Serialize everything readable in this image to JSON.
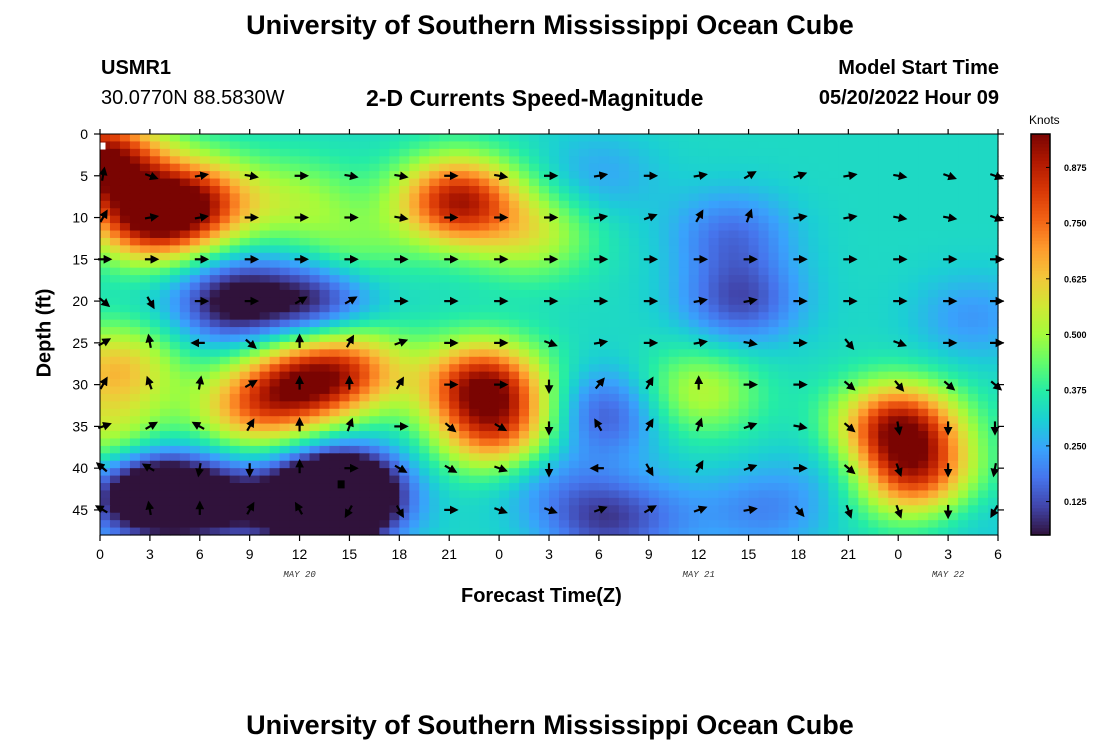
{
  "page": {
    "title_top": "University of Southern Mississippi Ocean Cube",
    "title_bottom": "University of Southern Mississippi Ocean Cube"
  },
  "header": {
    "station": "USMR1",
    "location": "30.0770N  88.5830W",
    "plot_title": "2-D Currents Speed-Magnitude",
    "model_label": "Model Start Time",
    "model_time": "05/20/2022 Hour 09"
  },
  "chart_data": {
    "type": "heatmap",
    "title": "2-D Currents Speed-Magnitude",
    "xlabel": "Forecast Time(Z)",
    "ylabel": "Depth (ft)",
    "x_tick_labels": [
      "0",
      "3",
      "6",
      "9",
      "12",
      "15",
      "18",
      "21",
      "0",
      "3",
      "6",
      "9",
      "12",
      "15",
      "18",
      "21",
      "0",
      "3",
      "6"
    ],
    "x_range_hours": [
      0,
      54
    ],
    "date_labels": [
      {
        "text": "MAY 20",
        "hour": 12
      },
      {
        "text": "MAY 21",
        "hour": 36
      },
      {
        "text": "MAY 22",
        "hour": 51
      }
    ],
    "y_ticks": [
      0,
      5,
      10,
      15,
      20,
      25,
      30,
      35,
      40,
      45
    ],
    "ylim": [
      0,
      48
    ],
    "colorbar": {
      "label": "Knots",
      "ticks": [
        "0.875",
        "0.750",
        "0.625",
        "0.500",
        "0.375",
        "0.250",
        "0.125"
      ],
      "tick_values": [
        0.875,
        0.75,
        0.625,
        0.5,
        0.375,
        0.25,
        0.125
      ],
      "range": [
        0.05,
        0.95
      ],
      "colors": [
        "#30123b",
        "#4145ab",
        "#4675ed",
        "#39a2fc",
        "#1bcfd4",
        "#24eca6",
        "#61fc6c",
        "#a4fc3b",
        "#d1e834",
        "#f3c63a",
        "#fe9b2d",
        "#f36315",
        "#d93806",
        "#b11901",
        "#7a0402"
      ]
    },
    "speed_blobs_knots": [
      {
        "hour": 0,
        "depth": 3,
        "amp": 0.62
      },
      {
        "hour": 3,
        "depth": 10,
        "amp": 0.55
      },
      {
        "hour": 6,
        "depth": 8,
        "amp": 0.4
      },
      {
        "hour": 21.5,
        "depth": 8,
        "amp": 0.55
      },
      {
        "hour": 23,
        "depth": 30,
        "amp": 0.55
      },
      {
        "hour": 24,
        "depth": 36,
        "amp": 0.4
      },
      {
        "hour": 12,
        "depth": 30,
        "amp": 0.42
      },
      {
        "hour": 15,
        "depth": 28,
        "amp": 0.35
      },
      {
        "hour": 9,
        "depth": 33,
        "amp": 0.3
      },
      {
        "hour": 1,
        "depth": 28,
        "amp": 0.3
      },
      {
        "hour": 0.5,
        "depth": 36,
        "amp": 0.2
      },
      {
        "hour": 48,
        "depth": 35,
        "amp": 0.55
      },
      {
        "hour": 49,
        "depth": 41,
        "amp": 0.45
      },
      {
        "hour": 12,
        "depth": 8,
        "amp": 0.15
      },
      {
        "hour": 15,
        "depth": 14,
        "amp": 0.12
      },
      {
        "hour": 26,
        "depth": 12,
        "amp": 0.2
      },
      {
        "hour": 26,
        "depth": 40,
        "amp": -0.12
      },
      {
        "hour": 40,
        "depth": 45,
        "amp": -0.12
      },
      {
        "hour": 8,
        "depth": 20,
        "amp": -0.3
      },
      {
        "hour": 13,
        "depth": 20,
        "amp": -0.25
      },
      {
        "hour": 14.5,
        "depth": 43,
        "amp": -0.55
      },
      {
        "hour": 13,
        "depth": 45,
        "amp": -0.3
      },
      {
        "hour": 3,
        "depth": 43,
        "amp": -0.45
      },
      {
        "hour": 7,
        "depth": 44,
        "amp": -0.25
      },
      {
        "hour": 30,
        "depth": 46,
        "amp": -0.2
      },
      {
        "hour": 38,
        "depth": 12,
        "amp": -0.15
      },
      {
        "hour": 38.5,
        "depth": 20,
        "amp": -0.2
      },
      {
        "hour": 30,
        "depth": 5,
        "amp": -0.08
      },
      {
        "hour": 30,
        "depth": 35,
        "amp": -0.05
      },
      {
        "hour": 52.5,
        "depth": 22,
        "amp": -0.1
      },
      {
        "hour": 52,
        "depth": 45,
        "amp": -0.06
      },
      {
        "hour": 36,
        "depth": 31,
        "amp": 0.2
      },
      {
        "hour": 45,
        "depth": 40,
        "amp": -0.08
      },
      {
        "hour": 30.5,
        "depth": 33,
        "amp": -0.15
      },
      {
        "hour": 34,
        "depth": 46,
        "amp": -0.08
      }
    ],
    "arrow_hours": [
      0,
      3,
      6,
      9,
      12,
      15,
      18,
      21,
      24,
      27,
      30,
      33,
      36,
      39,
      42,
      45,
      48,
      51,
      54
    ],
    "arrow_depths": [
      5,
      10,
      15,
      20,
      25,
      30,
      35,
      40,
      45
    ],
    "arrow_angles_deg_cw_from_east": [
      [
        -80,
        20,
        -10,
        10,
        0,
        10,
        10,
        0,
        10,
        0,
        -10,
        0,
        -10,
        -30,
        -20,
        -10,
        10,
        20,
        20
      ],
      [
        -60,
        -10,
        -10,
        0,
        0,
        0,
        10,
        0,
        0,
        0,
        -10,
        -20,
        -60,
        -70,
        -10,
        -10,
        10,
        10,
        20
      ],
      [
        0,
        0,
        0,
        0,
        0,
        0,
        0,
        0,
        0,
        0,
        0,
        0,
        0,
        0,
        0,
        0,
        0,
        0,
        0
      ],
      [
        40,
        60,
        0,
        0,
        -30,
        -30,
        0,
        0,
        0,
        0,
        0,
        0,
        -10,
        -10,
        0,
        0,
        0,
        0,
        0
      ],
      [
        -30,
        -100,
        -180,
        40,
        -90,
        -60,
        -20,
        0,
        0,
        20,
        -10,
        0,
        -10,
        10,
        0,
        50,
        20,
        0,
        0
      ],
      [
        -60,
        -110,
        -80,
        -30,
        -90,
        -90,
        -60,
        0,
        0,
        90,
        -50,
        -60,
        -90,
        0,
        0,
        40,
        50,
        40,
        40
      ],
      [
        -20,
        -30,
        -150,
        -60,
        -90,
        -70,
        0,
        40,
        30,
        90,
        -120,
        -60,
        -70,
        -20,
        10,
        40,
        80,
        90,
        90
      ],
      [
        -140,
        -150,
        100,
        90,
        -90,
        0,
        30,
        30,
        20,
        90,
        180,
        60,
        -60,
        -20,
        0,
        40,
        70,
        90,
        100
      ],
      [
        -150,
        -100,
        -90,
        -60,
        -120,
        120,
        60,
        0,
        20,
        20,
        -20,
        -30,
        -20,
        -10,
        50,
        70,
        70,
        90,
        120
      ]
    ],
    "markers": [
      {
        "hour": 0.15,
        "depth": 1.5,
        "color": "#ffffff"
      },
      {
        "hour": 14.5,
        "depth": 42,
        "color": "#000000"
      }
    ]
  }
}
